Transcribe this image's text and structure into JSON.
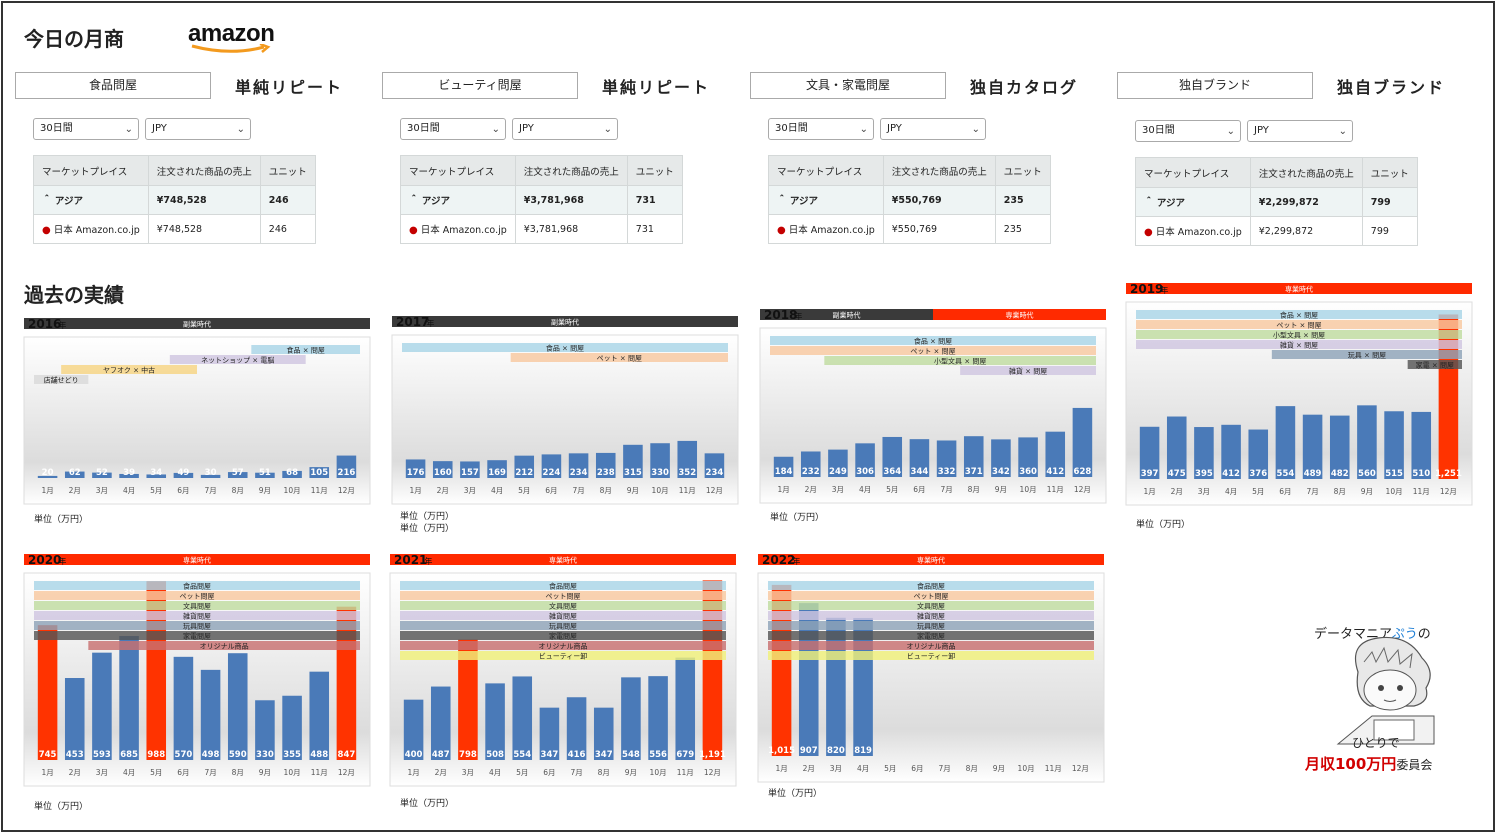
{
  "title": "今日の月商",
  "logo": "amazon",
  "history_title": "過去の実績",
  "panels": [
    {
      "name": "食品問屋",
      "type": "単純リピート",
      "period": "30日間",
      "currency": "JPY",
      "headers": [
        "マーケットプレイス",
        "注文された商品の売上",
        "ユニット"
      ],
      "region": "アジア",
      "region_sales": "¥748,528",
      "region_units": "246",
      "market": "日本 Amazon.co.jp",
      "market_sales": "¥748,528",
      "market_units": "246"
    },
    {
      "name": "ビューティ問屋",
      "type": "単純リピート",
      "period": "30日間",
      "currency": "JPY",
      "headers": [
        "マーケットプレイス",
        "注文された商品の売上",
        "ユニット"
      ],
      "region": "アジア",
      "region_sales": "¥3,781,968",
      "region_units": "731",
      "market": "日本 Amazon.co.jp",
      "market_sales": "¥3,781,968",
      "market_units": "731"
    },
    {
      "name": "文具・家電問屋",
      "type": "独自カタログ",
      "period": "30日間",
      "currency": "JPY",
      "headers": [
        "マーケットプレイス",
        "注文された商品の売上",
        "ユニット"
      ],
      "region": "アジア",
      "region_sales": "¥550,769",
      "region_units": "235",
      "market": "日本 Amazon.co.jp",
      "market_sales": "¥550,769",
      "market_units": "235"
    },
    {
      "name": "独自ブランド",
      "type": "独自ブランド",
      "period": "30日間",
      "currency": "JPY",
      "headers": [
        "マーケットプレイス",
        "注文された商品の売上",
        "ユニット"
      ],
      "region": "アジア",
      "region_sales": "¥2,299,872",
      "region_units": "799",
      "market": "日本 Amazon.co.jp",
      "market_sales": "¥2,299,872",
      "market_units": "799"
    }
  ],
  "unit_label": "単位（万円）",
  "mascot": {
    "line1a": "データマニア",
    "line1b": "ぷう",
    "line1c": "の",
    "line2": "ひとりで",
    "line3a": "月収100万円",
    "line3b": "委員会"
  },
  "colors": {
    "bar": "#4a7ab8",
    "highlight": "#ff3300",
    "era_side": "#3a3a3a",
    "era_full": "#ff2a00"
  },
  "chart_data": [
    {
      "type": "bar",
      "year": "2016",
      "era": [
        {
          "label": "副業時代",
          "color": "#3a3a3a",
          "from": 0,
          "to": 12
        }
      ],
      "categories": [
        "1月",
        "2月",
        "3月",
        "4月",
        "5月",
        "6月",
        "7月",
        "8月",
        "9月",
        "10月",
        "11月",
        "12月"
      ],
      "values": [
        20,
        62,
        52,
        39,
        34,
        49,
        30,
        57,
        51,
        68,
        105,
        216
      ],
      "labels": [
        "20",
        "62",
        "52",
        "39",
        "34",
        "49",
        "30",
        "57",
        "51",
        "68",
        "105",
        "216"
      ],
      "ylim": [
        0,
        1300
      ],
      "highlight": [],
      "bands": [
        {
          "label": "食品 × 問屋",
          "from": 8,
          "to": 12,
          "color": "#a8d4e6",
          "row": 0
        },
        {
          "label": "ネットショップ × 電脳",
          "from": 5,
          "to": 10,
          "color": "#cfc6e0",
          "row": 1
        },
        {
          "label": "ヤフオク × 中古",
          "from": 1,
          "to": 6,
          "color": "#f6d483",
          "row": 2
        },
        {
          "label": "店舗せどり",
          "from": 0,
          "to": 2,
          "color": "#d9d9d9",
          "row": 3
        }
      ]
    },
    {
      "type": "bar",
      "year": "2017",
      "era": [
        {
          "label": "副業時代",
          "color": "#3a3a3a",
          "from": 0,
          "to": 12
        }
      ],
      "categories": [
        "1月",
        "2月",
        "3月",
        "4月",
        "5月",
        "6月",
        "7月",
        "8月",
        "9月",
        "10月",
        "11月",
        "12月"
      ],
      "values": [
        176,
        160,
        157,
        169,
        212,
        224,
        234,
        238,
        315,
        330,
        352,
        234
      ],
      "labels": [
        "176",
        "160",
        "157",
        "169",
        "212",
        "224",
        "234",
        "238",
        "315",
        "330",
        "352",
        "234"
      ],
      "ylim": [
        0,
        1300
      ],
      "highlight": [],
      "bands": [
        {
          "label": "食品 × 問屋",
          "from": 0,
          "to": 12,
          "color": "#a8d4e6",
          "row": 0
        },
        {
          "label": "ペット × 問屋",
          "from": 4,
          "to": 12,
          "color": "#f8c8a0",
          "row": 1
        }
      ]
    },
    {
      "type": "bar",
      "year": "2018",
      "era": [
        {
          "label": "副業時代",
          "color": "#3a3a3a",
          "from": 0,
          "to": 6
        },
        {
          "label": "専業時代",
          "color": "#ff2a00",
          "from": 6,
          "to": 12
        }
      ],
      "categories": [
        "1月",
        "2月",
        "3月",
        "4月",
        "5月",
        "6月",
        "7月",
        "8月",
        "9月",
        "10月",
        "11月",
        "12月"
      ],
      "values": [
        184,
        232,
        249,
        306,
        364,
        344,
        332,
        371,
        342,
        360,
        412,
        628
      ],
      "labels": [
        "184",
        "232",
        "249",
        "306",
        "364",
        "344",
        "332",
        "371",
        "342",
        "360",
        "412",
        "628"
      ],
      "ylim": [
        0,
        1300
      ],
      "highlight": [],
      "bands": [
        {
          "label": "食品 × 問屋",
          "from": 0,
          "to": 12,
          "color": "#a8d4e6",
          "row": 0
        },
        {
          "label": "ペット × 問屋",
          "from": 0,
          "to": 12,
          "color": "#f8c8a0",
          "row": 1
        },
        {
          "label": "小型文具 × 問屋",
          "from": 2,
          "to": 12,
          "color": "#c0dca0",
          "row": 2
        },
        {
          "label": "雑貨 × 問屋",
          "from": 7,
          "to": 12,
          "color": "#cfc6e0",
          "row": 3
        }
      ]
    },
    {
      "type": "bar",
      "year": "2019",
      "era": [
        {
          "label": "専業時代",
          "color": "#ff2a00",
          "from": 0,
          "to": 12
        }
      ],
      "categories": [
        "1月",
        "2月",
        "3月",
        "4月",
        "5月",
        "6月",
        "7月",
        "8月",
        "9月",
        "10月",
        "11月",
        "12月"
      ],
      "values": [
        397,
        475,
        395,
        412,
        376,
        554,
        489,
        482,
        560,
        515,
        510,
        1251
      ],
      "labels": [
        "397",
        "475",
        "395",
        "412",
        "376",
        "554",
        "489",
        "482",
        "560",
        "515",
        "510",
        "1,251"
      ],
      "ylim": [
        0,
        1300
      ],
      "highlight": [
        11
      ],
      "bands": [
        {
          "label": "食品 × 問屋",
          "from": 0,
          "to": 12,
          "color": "#a8d4e6",
          "row": 0
        },
        {
          "label": "ペット × 問屋",
          "from": 0,
          "to": 12,
          "color": "#f8c8a0",
          "row": 1
        },
        {
          "label": "小型文具 × 問屋",
          "from": 0,
          "to": 12,
          "color": "#c0dca0",
          "row": 2
        },
        {
          "label": "雑貨 × 問屋",
          "from": 0,
          "to": 12,
          "color": "#cfc6e0",
          "row": 3
        },
        {
          "label": "玩具 × 問屋",
          "from": 5,
          "to": 12,
          "color": "#8fa4b8",
          "row": 4
        },
        {
          "label": "家電 × 問屋",
          "from": 10,
          "to": 12,
          "color": "#555555",
          "row": 5
        }
      ]
    },
    {
      "type": "bar",
      "year": "2020",
      "era": [
        {
          "label": "専業時代",
          "color": "#ff2a00",
          "from": 0,
          "to": 12
        }
      ],
      "categories": [
        "1月",
        "2月",
        "3月",
        "4月",
        "5月",
        "6月",
        "7月",
        "8月",
        "9月",
        "10月",
        "11月",
        "12月"
      ],
      "values": [
        745,
        453,
        593,
        685,
        988,
        570,
        498,
        590,
        330,
        355,
        488,
        847
      ],
      "labels": [
        "745",
        "453",
        "593",
        "685",
        "988",
        "570",
        "498",
        "590",
        "330",
        "355",
        "488",
        "847"
      ],
      "ylim": [
        0,
        1000
      ],
      "highlight": [
        0,
        4,
        11
      ],
      "bands": [
        {
          "label": "食品問屋",
          "from": 0,
          "to": 12,
          "color": "#a8d4e6",
          "row": 0
        },
        {
          "label": "ペット問屋",
          "from": 0,
          "to": 12,
          "color": "#f8c8a0",
          "row": 1
        },
        {
          "label": "文具問屋",
          "from": 0,
          "to": 12,
          "color": "#c0dca0",
          "row": 2
        },
        {
          "label": "雑貨問屋",
          "from": 0,
          "to": 12,
          "color": "#cfc6e0",
          "row": 3
        },
        {
          "label": "玩具問屋",
          "from": 0,
          "to": 12,
          "color": "#8fa4b8",
          "row": 4
        },
        {
          "label": "家電問屋",
          "from": 0,
          "to": 12,
          "color": "#555555",
          "row": 5
        },
        {
          "label": "オリジナル商品",
          "from": 2,
          "to": 12,
          "color": "#c87070",
          "row": 6
        }
      ]
    },
    {
      "type": "bar",
      "year": "2021",
      "era": [
        {
          "label": "専業時代",
          "color": "#ff2a00",
          "from": 0,
          "to": 12
        }
      ],
      "categories": [
        "1月",
        "2月",
        "3月",
        "4月",
        "5月",
        "6月",
        "7月",
        "8月",
        "9月",
        "10月",
        "11月",
        "12月"
      ],
      "values": [
        400,
        487,
        798,
        508,
        554,
        347,
        416,
        347,
        548,
        556,
        679,
        1191
      ],
      "labels": [
        "400",
        "487",
        "798",
        "508",
        "554",
        "347",
        "416",
        "347",
        "548",
        "556",
        "679",
        "1,191"
      ],
      "ylim": [
        0,
        1200
      ],
      "highlight": [
        2,
        11
      ],
      "bands": [
        {
          "label": "食品問屋",
          "from": 0,
          "to": 12,
          "color": "#a8d4e6",
          "row": 0
        },
        {
          "label": "ペット問屋",
          "from": 0,
          "to": 12,
          "color": "#f8c8a0",
          "row": 1
        },
        {
          "label": "文具問屋",
          "from": 0,
          "to": 12,
          "color": "#c0dca0",
          "row": 2
        },
        {
          "label": "雑貨問屋",
          "from": 0,
          "to": 12,
          "color": "#cfc6e0",
          "row": 3
        },
        {
          "label": "玩具問屋",
          "from": 0,
          "to": 12,
          "color": "#8fa4b8",
          "row": 4
        },
        {
          "label": "家電問屋",
          "from": 0,
          "to": 12,
          "color": "#555555",
          "row": 5
        },
        {
          "label": "オリジナル商品",
          "from": 0,
          "to": 12,
          "color": "#c87070",
          "row": 6
        },
        {
          "label": "ビューティー卸",
          "from": 0,
          "to": 12,
          "color": "#f0f07a",
          "row": 7
        }
      ]
    },
    {
      "type": "bar",
      "year": "2022",
      "era": [
        {
          "label": "専業時代",
          "color": "#ff2a00",
          "from": 0,
          "to": 12
        }
      ],
      "categories": [
        "1月",
        "2月",
        "3月",
        "4月",
        "5月",
        "6月",
        "7月",
        "8月",
        "9月",
        "10月",
        "11月",
        "12月"
      ],
      "values": [
        1015,
        907,
        820,
        819,
        null,
        null,
        null,
        null,
        null,
        null,
        null,
        null
      ],
      "labels": [
        "1,015",
        "907",
        "820",
        "819",
        "",
        "",
        "",
        "",
        "",
        "",
        "",
        ""
      ],
      "ylim": [
        0,
        1050
      ],
      "highlight": [
        0
      ],
      "bands": [
        {
          "label": "食品問屋",
          "from": 0,
          "to": 12,
          "color": "#a8d4e6",
          "row": 0
        },
        {
          "label": "ペット問屋",
          "from": 0,
          "to": 12,
          "color": "#f8c8a0",
          "row": 1
        },
        {
          "label": "文具問屋",
          "from": 0,
          "to": 12,
          "color": "#c0dca0",
          "row": 2
        },
        {
          "label": "雑貨問屋",
          "from": 0,
          "to": 12,
          "color": "#cfc6e0",
          "row": 3
        },
        {
          "label": "玩具問屋",
          "from": 0,
          "to": 12,
          "color": "#8fa4b8",
          "row": 4
        },
        {
          "label": "家電問屋",
          "from": 0,
          "to": 12,
          "color": "#555555",
          "row": 5
        },
        {
          "label": "オリジナル商品",
          "from": 0,
          "to": 12,
          "color": "#c87070",
          "row": 6
        },
        {
          "label": "ビューティー卸",
          "from": 0,
          "to": 12,
          "color": "#f0f07a",
          "row": 7
        }
      ]
    }
  ]
}
